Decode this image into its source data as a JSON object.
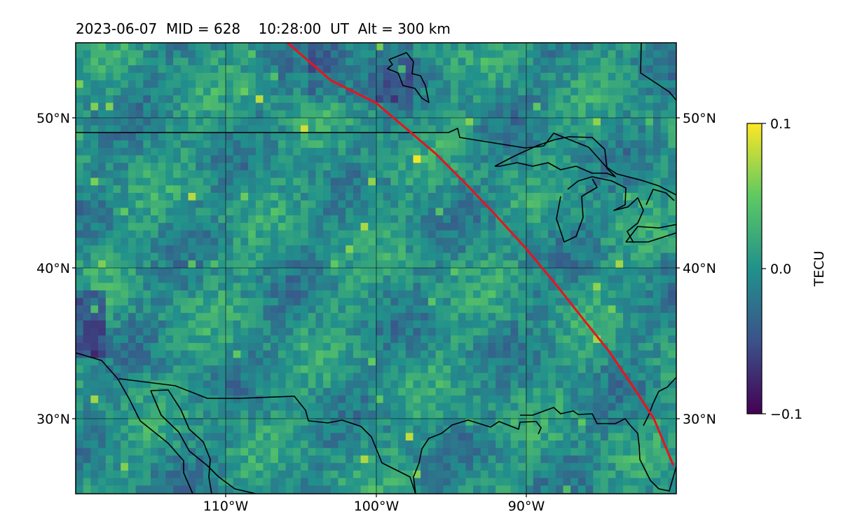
{
  "title": "2023-06-07  MID = 628    10:28:00  UT  Alt = 300 km",
  "map": {
    "projection": "plate-carree",
    "lon_range": [
      -120,
      -80
    ],
    "lat_range": [
      25,
      55
    ],
    "gridlines": true
  },
  "axes": {
    "lat_ticks_left": [
      "50°N",
      "40°N",
      "30°N"
    ],
    "lat_ticks_right": [
      "50°N",
      "40°N",
      "30°N"
    ],
    "lon_ticks": [
      "110°W",
      "100°W",
      "90°W"
    ]
  },
  "colorbar": {
    "label": "TECU",
    "colormap": "viridis",
    "vmin": -0.1,
    "vmax": 0.1,
    "ticks": [
      "0.1",
      "0.0",
      "−0.1"
    ]
  },
  "track": {
    "color": "#e8141b",
    "points": [
      [
        -105.9,
        55
      ],
      [
        -103,
        52.5
      ],
      [
        -100,
        51
      ],
      [
        -98,
        49.3
      ],
      [
        -96,
        47.6
      ],
      [
        -94,
        45.6
      ],
      [
        -92,
        43.5
      ],
      [
        -90,
        41.3
      ],
      [
        -88,
        38.9
      ],
      [
        -86.5,
        37
      ],
      [
        -84.5,
        34.5
      ],
      [
        -83,
        32.3
      ],
      [
        -81.5,
        30
      ],
      [
        -80.2,
        26.9
      ]
    ]
  },
  "coastline_color": "#000000"
}
